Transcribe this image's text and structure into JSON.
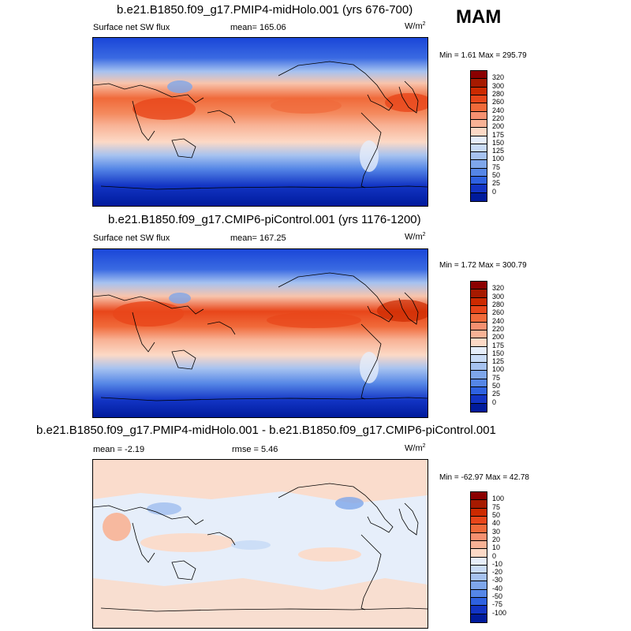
{
  "season": "MAM",
  "panels": [
    {
      "title": "b.e21.B1850.f09_g17.PMIP4-midHolo.001 (yrs 676-700)",
      "left_label": "Surface net SW flux",
      "stat_label": "mean= 165.06",
      "units_base": "W/m",
      "units_exp": "2",
      "minmax": "Min =   1.61 Max = 295.79",
      "colorbar": {
        "labels": [
          "320",
          "300",
          "280",
          "260",
          "240",
          "220",
          "200",
          "175",
          "150",
          "125",
          "100",
          "75",
          "50",
          "25",
          "0"
        ],
        "colors": [
          "#8b0000",
          "#a61a00",
          "#cc2a00",
          "#e8461a",
          "#f06a3a",
          "#f59070",
          "#f8b295",
          "#fcd9c6",
          "#e6eefa",
          "#c9dbf6",
          "#a6c2f0",
          "#7ea6ea",
          "#5586e6",
          "#2e61e0",
          "#1234c4",
          "#001b9c"
        ]
      }
    },
    {
      "title": "b.e21.B1850.f09_g17.CMIP6-piControl.001 (yrs 1176-1200)",
      "left_label": "Surface net SW flux",
      "stat_label": "mean= 167.25",
      "units_base": "W/m",
      "units_exp": "2",
      "minmax": "Min =   1.72 Max = 300.79",
      "colorbar": {
        "labels": [
          "320",
          "300",
          "280",
          "260",
          "240",
          "220",
          "200",
          "175",
          "150",
          "125",
          "100",
          "75",
          "50",
          "25",
          "0"
        ],
        "colors": [
          "#8b0000",
          "#a61a00",
          "#cc2a00",
          "#e8461a",
          "#f06a3a",
          "#f59070",
          "#f8b295",
          "#fcd9c6",
          "#e6eefa",
          "#c9dbf6",
          "#a6c2f0",
          "#7ea6ea",
          "#5586e6",
          "#2e61e0",
          "#1234c4",
          "#001b9c"
        ]
      }
    },
    {
      "title": "b.e21.B1850.f09_g17.PMIP4-midHolo.001 - b.e21.B1850.f09_g17.CMIP6-piControl.001",
      "left_label": "mean =  -2.19",
      "stat_label": "rmse =   5.46",
      "units_base": "W/m",
      "units_exp": "2",
      "minmax": "Min = -62.97 Max =  42.78",
      "colorbar": {
        "labels": [
          "100",
          "75",
          "50",
          "40",
          "30",
          "20",
          "10",
          "0",
          "-10",
          "-20",
          "-30",
          "-40",
          "-50",
          "-75",
          "-100"
        ],
        "colors": [
          "#8b0000",
          "#a61a00",
          "#cc2a00",
          "#e8461a",
          "#f06a3a",
          "#f59070",
          "#f8b295",
          "#fcd9c6",
          "#e6eefa",
          "#c9dbf6",
          "#a6c2f0",
          "#7ea6ea",
          "#5586e6",
          "#2e61e0",
          "#1234c4",
          "#001b9c"
        ]
      }
    }
  ]
}
